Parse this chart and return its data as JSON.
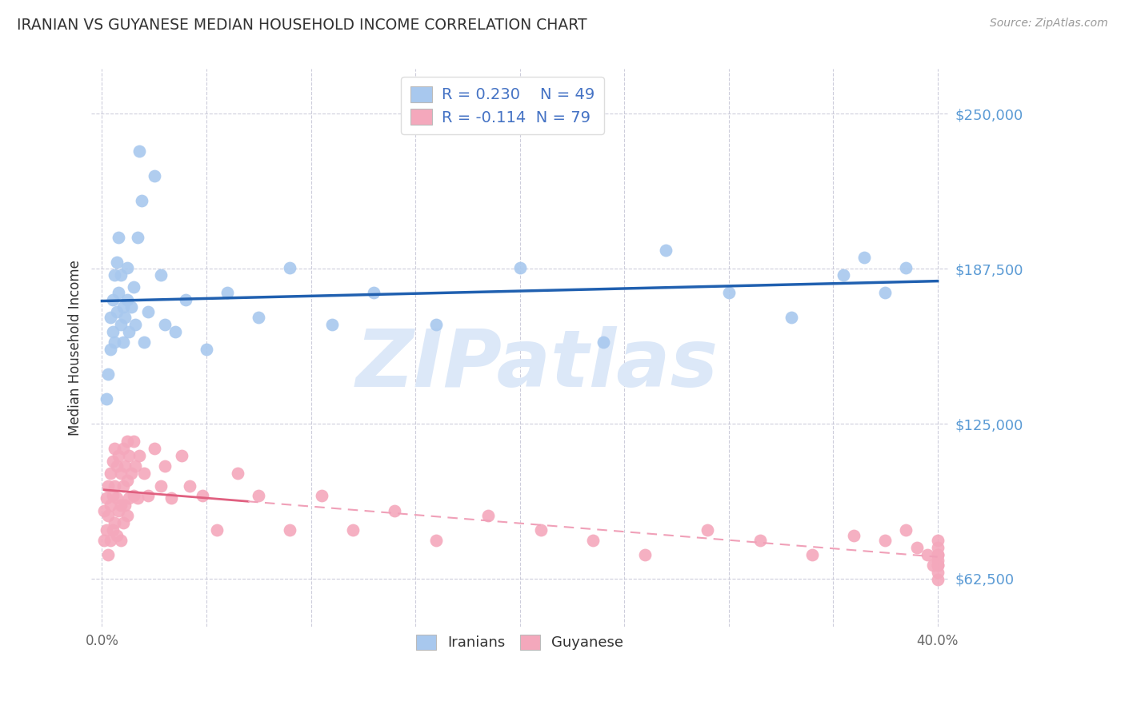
{
  "title": "IRANIAN VS GUYANESE MEDIAN HOUSEHOLD INCOME CORRELATION CHART",
  "source_text": "Source: ZipAtlas.com",
  "ylabel": "Median Household Income",
  "xlim": [
    -0.005,
    0.405
  ],
  "ylim": [
    43000,
    268000
  ],
  "yticks": [
    62500,
    125000,
    187500,
    250000
  ],
  "ytick_labels": [
    "$62,500",
    "$125,000",
    "$187,500",
    "$250,000"
  ],
  "xticks": [
    0.0,
    0.05,
    0.1,
    0.15,
    0.2,
    0.25,
    0.3,
    0.35,
    0.4
  ],
  "xtick_labels": [
    "0.0%",
    "",
    "",
    "",
    "",
    "",
    "",
    "",
    "40.0%"
  ],
  "iranian_R": 0.23,
  "iranian_N": 49,
  "guyanese_R": -0.114,
  "guyanese_N": 79,
  "iranian_color": "#a8c8ee",
  "guyanese_color": "#f4a8bc",
  "iranian_line_color": "#2060b0",
  "guyanese_line_solid_color": "#e06080",
  "guyanese_line_dash_color": "#f0a0b8",
  "background_color": "#ffffff",
  "grid_color": "#c8c8d8",
  "title_color": "#333333",
  "watermark_text": "ZIPatlas",
  "watermark_color": "#dce8f8",
  "ylabel_color": "#333333",
  "ytick_color": "#5b9bd5",
  "xtick_color": "#666666",
  "legend_label_1": "Iranians",
  "legend_label_2": "Guyanese",
  "legend_r_color": "#4472c4",
  "iranian_scatter_x": [
    0.002,
    0.003,
    0.004,
    0.004,
    0.005,
    0.005,
    0.006,
    0.006,
    0.007,
    0.007,
    0.008,
    0.008,
    0.009,
    0.009,
    0.01,
    0.01,
    0.011,
    0.012,
    0.012,
    0.013,
    0.014,
    0.015,
    0.016,
    0.017,
    0.018,
    0.019,
    0.02,
    0.022,
    0.025,
    0.028,
    0.03,
    0.035,
    0.04,
    0.05,
    0.06,
    0.075,
    0.09,
    0.11,
    0.13,
    0.16,
    0.2,
    0.24,
    0.27,
    0.3,
    0.33,
    0.355,
    0.365,
    0.375,
    0.385
  ],
  "iranian_scatter_y": [
    135000,
    145000,
    155000,
    168000,
    162000,
    175000,
    158000,
    185000,
    170000,
    190000,
    178000,
    200000,
    165000,
    185000,
    172000,
    158000,
    168000,
    175000,
    188000,
    162000,
    172000,
    180000,
    165000,
    200000,
    235000,
    215000,
    158000,
    170000,
    225000,
    185000,
    165000,
    162000,
    175000,
    155000,
    178000,
    168000,
    188000,
    165000,
    178000,
    165000,
    188000,
    158000,
    195000,
    178000,
    168000,
    185000,
    192000,
    178000,
    188000
  ],
  "guyanese_scatter_x": [
    0.001,
    0.001,
    0.002,
    0.002,
    0.003,
    0.003,
    0.003,
    0.004,
    0.004,
    0.004,
    0.005,
    0.005,
    0.005,
    0.006,
    0.006,
    0.006,
    0.007,
    0.007,
    0.007,
    0.008,
    0.008,
    0.009,
    0.009,
    0.009,
    0.01,
    0.01,
    0.01,
    0.011,
    0.011,
    0.012,
    0.012,
    0.012,
    0.013,
    0.013,
    0.014,
    0.015,
    0.015,
    0.016,
    0.017,
    0.018,
    0.02,
    0.022,
    0.025,
    0.028,
    0.03,
    0.033,
    0.038,
    0.042,
    0.048,
    0.055,
    0.065,
    0.075,
    0.09,
    0.105,
    0.12,
    0.14,
    0.16,
    0.185,
    0.21,
    0.235,
    0.26,
    0.29,
    0.315,
    0.34,
    0.36,
    0.375,
    0.385,
    0.39,
    0.395,
    0.398,
    0.4,
    0.4,
    0.4,
    0.4,
    0.4,
    0.4,
    0.4,
    0.4,
    0.4
  ],
  "guyanese_scatter_y": [
    90000,
    78000,
    95000,
    82000,
    100000,
    88000,
    72000,
    105000,
    92000,
    78000,
    110000,
    96000,
    82000,
    115000,
    100000,
    85000,
    108000,
    95000,
    80000,
    112000,
    90000,
    105000,
    92000,
    78000,
    115000,
    100000,
    85000,
    108000,
    92000,
    118000,
    102000,
    88000,
    112000,
    95000,
    105000,
    118000,
    96000,
    108000,
    95000,
    112000,
    105000,
    96000,
    115000,
    100000,
    108000,
    95000,
    112000,
    100000,
    96000,
    82000,
    105000,
    96000,
    82000,
    96000,
    82000,
    90000,
    78000,
    88000,
    82000,
    78000,
    72000,
    82000,
    78000,
    72000,
    80000,
    78000,
    82000,
    75000,
    72000,
    68000,
    78000,
    72000,
    68000,
    75000,
    70000,
    65000,
    72000,
    68000,
    62000
  ]
}
